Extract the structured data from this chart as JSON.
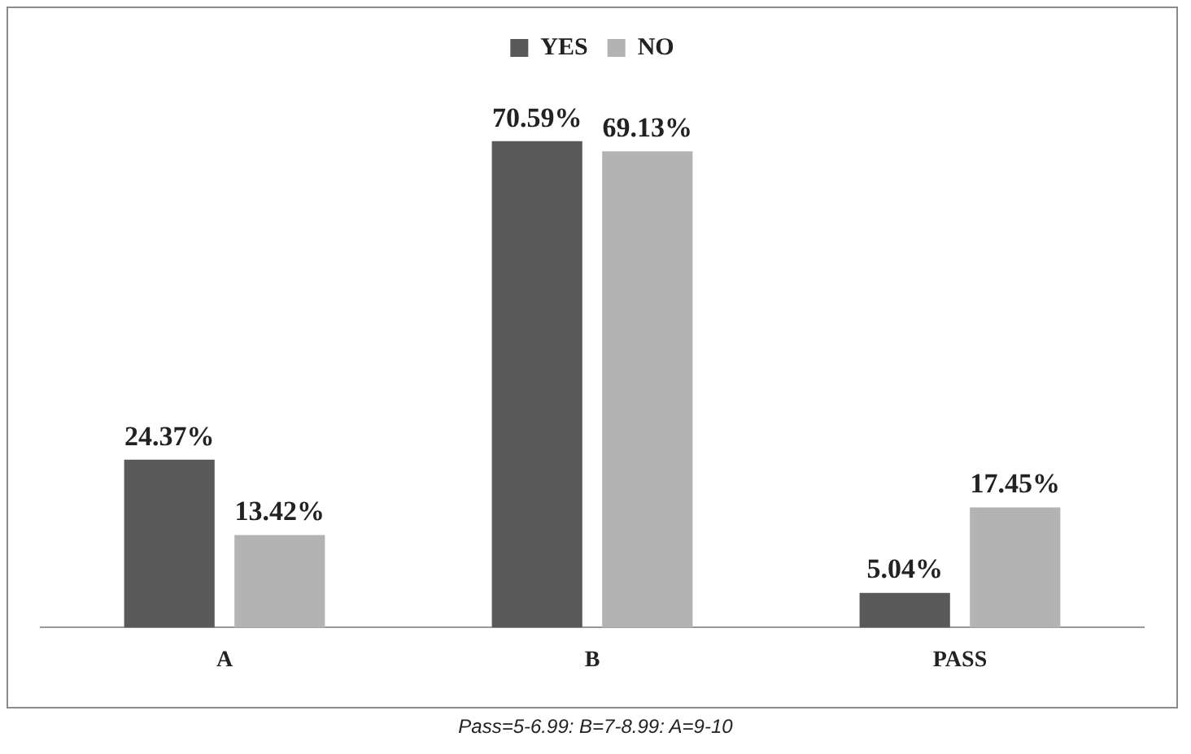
{
  "chart_data": {
    "type": "bar",
    "categories": [
      "A",
      "B",
      "PASS"
    ],
    "series": [
      {
        "name": "YES",
        "color": "#595959",
        "values": [
          24.37,
          70.59,
          5.04
        ],
        "value_labels": [
          "24.37%",
          "70.59%",
          "5.04%"
        ]
      },
      {
        "name": "NO",
        "color": "#b3b3b3",
        "values": [
          13.42,
          69.13,
          17.45
        ],
        "value_labels": [
          "13.42%",
          "69.13%",
          "17.45%"
        ]
      }
    ],
    "legend": "top",
    "annotations": [
      "Pass=5-6.99: B=7-8.99: A=9-10"
    ]
  }
}
